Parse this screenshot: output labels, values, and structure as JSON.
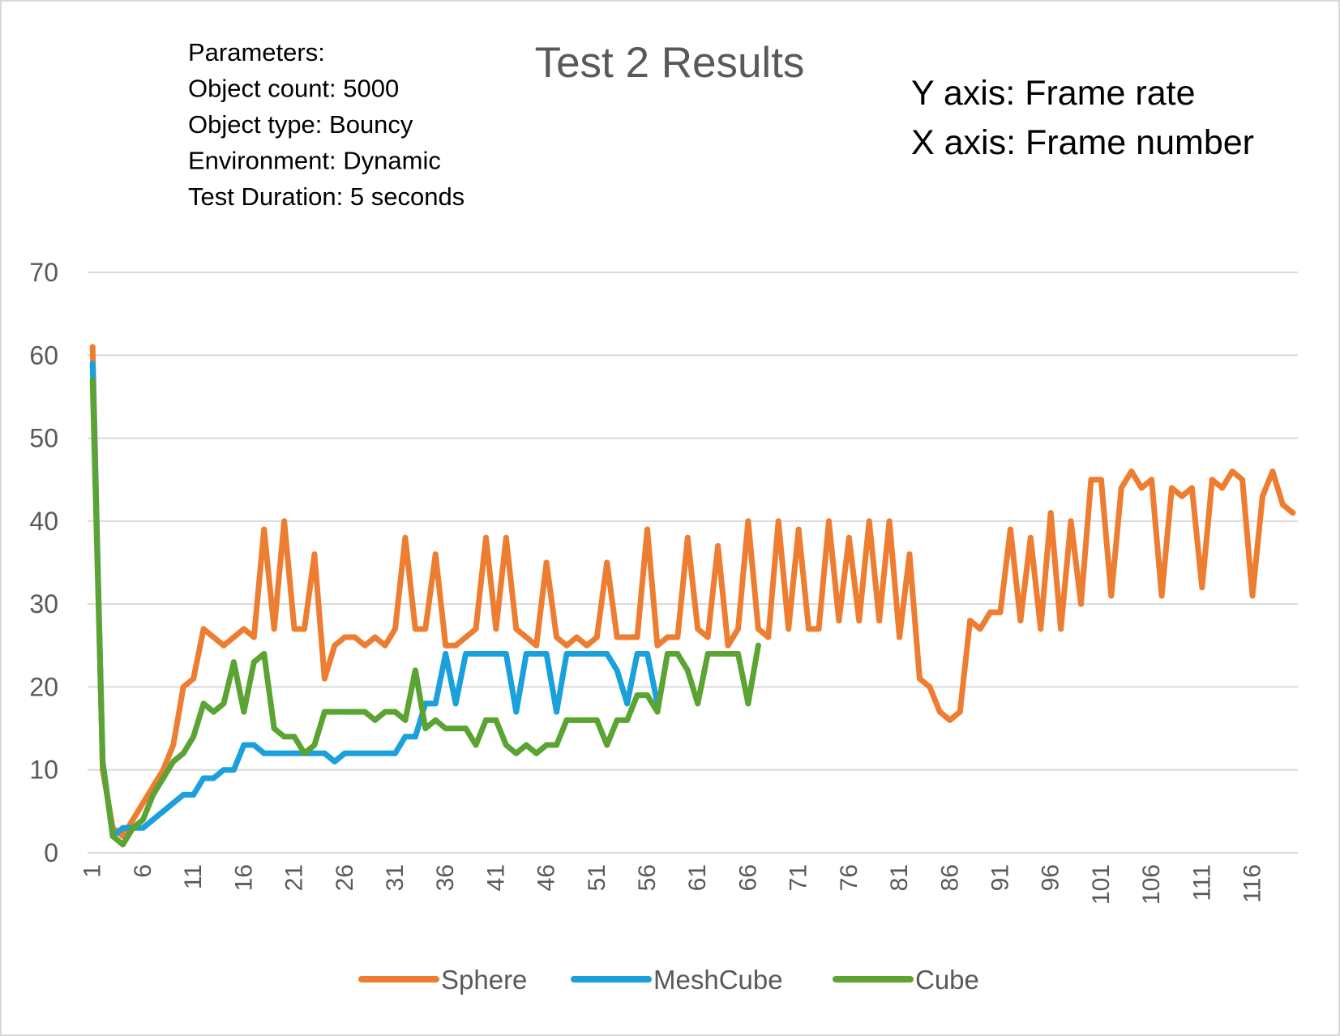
{
  "chart_data": {
    "type": "line",
    "title": "Test 2 Results",
    "params": [
      "Parameters:",
      "Object count: 5000",
      "Object type: Bouncy",
      "Environment: Dynamic",
      "Test Duration: 5 seconds"
    ],
    "axis_notes": [
      "Y axis: Frame rate",
      "X axis: Frame number"
    ],
    "xlabel": "",
    "ylabel": "",
    "ylim": [
      0,
      70
    ],
    "yticks": [
      0,
      10,
      20,
      30,
      40,
      50,
      60,
      70
    ],
    "x_count": 120,
    "xticks": [
      1,
      6,
      11,
      16,
      21,
      26,
      31,
      36,
      41,
      46,
      51,
      56,
      61,
      66,
      71,
      76,
      81,
      86,
      91,
      96,
      101,
      106,
      111,
      116
    ],
    "grid": true,
    "legend_position": "bottom",
    "series": [
      {
        "name": "Sphere",
        "color": "#ED7D31",
        "values": [
          61,
          10,
          3,
          2,
          4,
          6,
          8,
          10,
          13,
          20,
          21,
          27,
          26,
          25,
          26,
          27,
          26,
          39,
          27,
          40,
          27,
          27,
          36,
          21,
          25,
          26,
          26,
          25,
          26,
          25,
          27,
          38,
          27,
          27,
          36,
          25,
          25,
          26,
          27,
          38,
          27,
          38,
          27,
          26,
          25,
          35,
          26,
          25,
          26,
          25,
          26,
          35,
          26,
          26,
          26,
          39,
          25,
          26,
          26,
          38,
          27,
          26,
          37,
          25,
          27,
          40,
          27,
          26,
          40,
          27,
          39,
          27,
          27,
          40,
          28,
          38,
          28,
          40,
          28,
          40,
          26,
          36,
          21,
          20,
          17,
          16,
          17,
          28,
          27,
          29,
          29,
          39,
          28,
          38,
          27,
          41,
          27,
          40,
          30,
          45,
          45,
          31,
          44,
          46,
          44,
          45,
          31,
          44,
          43,
          44,
          32,
          45,
          44,
          46,
          45,
          31,
          43,
          46,
          42,
          41
        ]
      },
      {
        "name": "MeshCube",
        "color": "#1AA0DB",
        "values": [
          59,
          11,
          2,
          3,
          3,
          3,
          4,
          5,
          6,
          7,
          7,
          9,
          9,
          10,
          10,
          13,
          13,
          12,
          12,
          12,
          12,
          12,
          12,
          12,
          11,
          12,
          12,
          12,
          12,
          12,
          12,
          14,
          14,
          18,
          18,
          24,
          18,
          24,
          24,
          24,
          24,
          24,
          17,
          24,
          24,
          24,
          17,
          24,
          24,
          24,
          24,
          24,
          22,
          18,
          24,
          24,
          18
        ]
      },
      {
        "name": "Cube",
        "color": "#5BA332",
        "values": [
          57,
          11,
          2,
          1,
          3,
          4,
          7,
          9,
          11,
          12,
          14,
          18,
          17,
          18,
          23,
          17,
          23,
          24,
          15,
          14,
          14,
          12,
          13,
          17,
          17,
          17,
          17,
          17,
          16,
          17,
          17,
          16,
          22,
          15,
          16,
          15,
          15,
          15,
          13,
          16,
          16,
          13,
          12,
          13,
          12,
          13,
          13,
          16,
          16,
          16,
          16,
          13,
          16,
          16,
          19,
          19,
          17,
          24,
          24,
          22,
          18,
          24,
          24,
          24,
          24,
          18,
          25
        ]
      }
    ]
  }
}
